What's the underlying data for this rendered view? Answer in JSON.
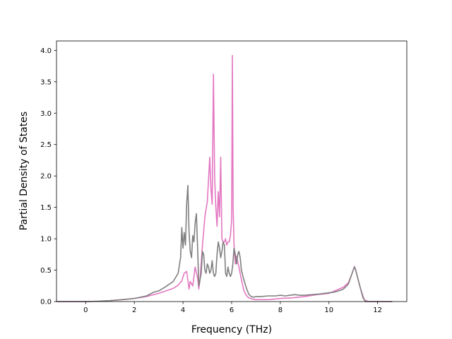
{
  "chart_data": {
    "type": "line",
    "title": "",
    "xlabel": "Frequency (THz)",
    "ylabel": "Partial Density of States",
    "xlim": [
      -1.2,
      13.2
    ],
    "ylim": [
      0,
      4.15
    ],
    "xticks": [
      0,
      2,
      4,
      6,
      8,
      10,
      12
    ],
    "yticks": [
      0.0,
      0.5,
      1.0,
      1.5,
      2.0,
      2.5,
      3.0,
      3.5,
      4.0
    ],
    "ytick_labels": [
      "0.0",
      "0.5",
      "1.0",
      "1.5",
      "2.0",
      "2.5",
      "3.0",
      "3.5",
      "4.0"
    ],
    "grid": false,
    "legend": "none",
    "series": [
      {
        "color": "#e377c2",
        "x": [
          -1.2,
          0,
          0.5,
          1,
          1.5,
          2,
          2.5,
          3,
          3.3,
          3.6,
          3.8,
          3.95,
          4.05,
          4.15,
          4.25,
          4.3,
          4.4,
          4.5,
          4.6,
          4.65,
          4.7,
          4.8,
          4.9,
          5.0,
          5.1,
          5.15,
          5.2,
          5.25,
          5.3,
          5.35,
          5.4,
          5.45,
          5.5,
          5.55,
          5.6,
          5.65,
          5.7,
          5.75,
          5.8,
          5.85,
          5.9,
          5.95,
          6.0,
          6.03,
          6.06,
          6.1,
          6.15,
          6.2,
          6.3,
          6.4,
          6.5,
          6.6,
          6.7,
          6.85,
          7.0,
          7.5,
          8.0,
          8.5,
          9.0,
          9.5,
          10.0,
          10.3,
          10.6,
          10.8,
          10.95,
          11.05,
          11.1,
          11.2,
          11.3,
          11.45,
          11.6,
          12.6
        ],
        "y": [
          0,
          0,
          0.005,
          0.015,
          0.03,
          0.05,
          0.08,
          0.13,
          0.17,
          0.21,
          0.26,
          0.33,
          0.45,
          0.48,
          0.2,
          0.32,
          0.25,
          0.55,
          0.38,
          0.2,
          0.35,
          0.9,
          1.35,
          1.6,
          2.3,
          1.8,
          1.55,
          3.62,
          2.0,
          1.5,
          1.2,
          1.75,
          1.35,
          2.3,
          1.0,
          0.95,
          0.95,
          1.0,
          0.9,
          0.95,
          0.95,
          1.05,
          1.3,
          3.92,
          1.5,
          0.9,
          0.6,
          0.72,
          0.55,
          0.35,
          0.18,
          0.1,
          0.06,
          0.04,
          0.03,
          0.03,
          0.05,
          0.06,
          0.08,
          0.11,
          0.13,
          0.18,
          0.23,
          0.3,
          0.45,
          0.56,
          0.5,
          0.35,
          0.2,
          0.03,
          0,
          0
        ]
      },
      {
        "color": "#7f7f7f",
        "x": [
          -1.2,
          0,
          0.5,
          1,
          1.5,
          2,
          2.5,
          2.8,
          3.0,
          3.3,
          3.6,
          3.8,
          3.9,
          3.95,
          4.0,
          4.05,
          4.1,
          4.15,
          4.2,
          4.25,
          4.3,
          4.35,
          4.4,
          4.45,
          4.5,
          4.55,
          4.6,
          4.65,
          4.7,
          4.75,
          4.8,
          4.85,
          4.9,
          4.95,
          5.0,
          5.05,
          5.1,
          5.15,
          5.2,
          5.25,
          5.3,
          5.35,
          5.4,
          5.45,
          5.5,
          5.55,
          5.6,
          5.65,
          5.7,
          5.75,
          5.8,
          5.85,
          5.9,
          5.95,
          6.0,
          6.05,
          6.1,
          6.15,
          6.2,
          6.25,
          6.3,
          6.35,
          6.4,
          6.5,
          6.6,
          6.7,
          6.8,
          6.9,
          7.0,
          7.2,
          7.5,
          7.8,
          8.0,
          8.2,
          8.4,
          8.6,
          8.8,
          9.0,
          9.3,
          9.6,
          9.8,
          10.0,
          10.2,
          10.4,
          10.6,
          10.8,
          10.95,
          11.05,
          11.1,
          11.2,
          11.3,
          11.4,
          11.5,
          12.6
        ],
        "y": [
          0,
          0,
          0.005,
          0.015,
          0.03,
          0.05,
          0.09,
          0.15,
          0.17,
          0.24,
          0.32,
          0.45,
          0.7,
          1.18,
          0.85,
          1.1,
          0.9,
          1.55,
          1.85,
          1.1,
          0.8,
          0.7,
          1.05,
          0.95,
          1.25,
          1.4,
          0.85,
          0.25,
          0.35,
          0.45,
          0.8,
          0.75,
          0.5,
          0.45,
          0.6,
          0.55,
          0.45,
          0.5,
          0.65,
          0.45,
          0.4,
          0.45,
          0.75,
          0.95,
          0.85,
          0.7,
          0.8,
          0.95,
          0.9,
          0.45,
          0.4,
          0.55,
          0.45,
          0.4,
          0.45,
          0.6,
          0.85,
          0.75,
          0.6,
          0.75,
          0.8,
          0.7,
          0.5,
          0.35,
          0.22,
          0.12,
          0.08,
          0.07,
          0.08,
          0.08,
          0.09,
          0.09,
          0.1,
          0.09,
          0.1,
          0.11,
          0.1,
          0.1,
          0.11,
          0.12,
          0.13,
          0.14,
          0.15,
          0.17,
          0.2,
          0.28,
          0.45,
          0.55,
          0.5,
          0.35,
          0.2,
          0.06,
          0.0,
          0.0
        ]
      }
    ]
  }
}
